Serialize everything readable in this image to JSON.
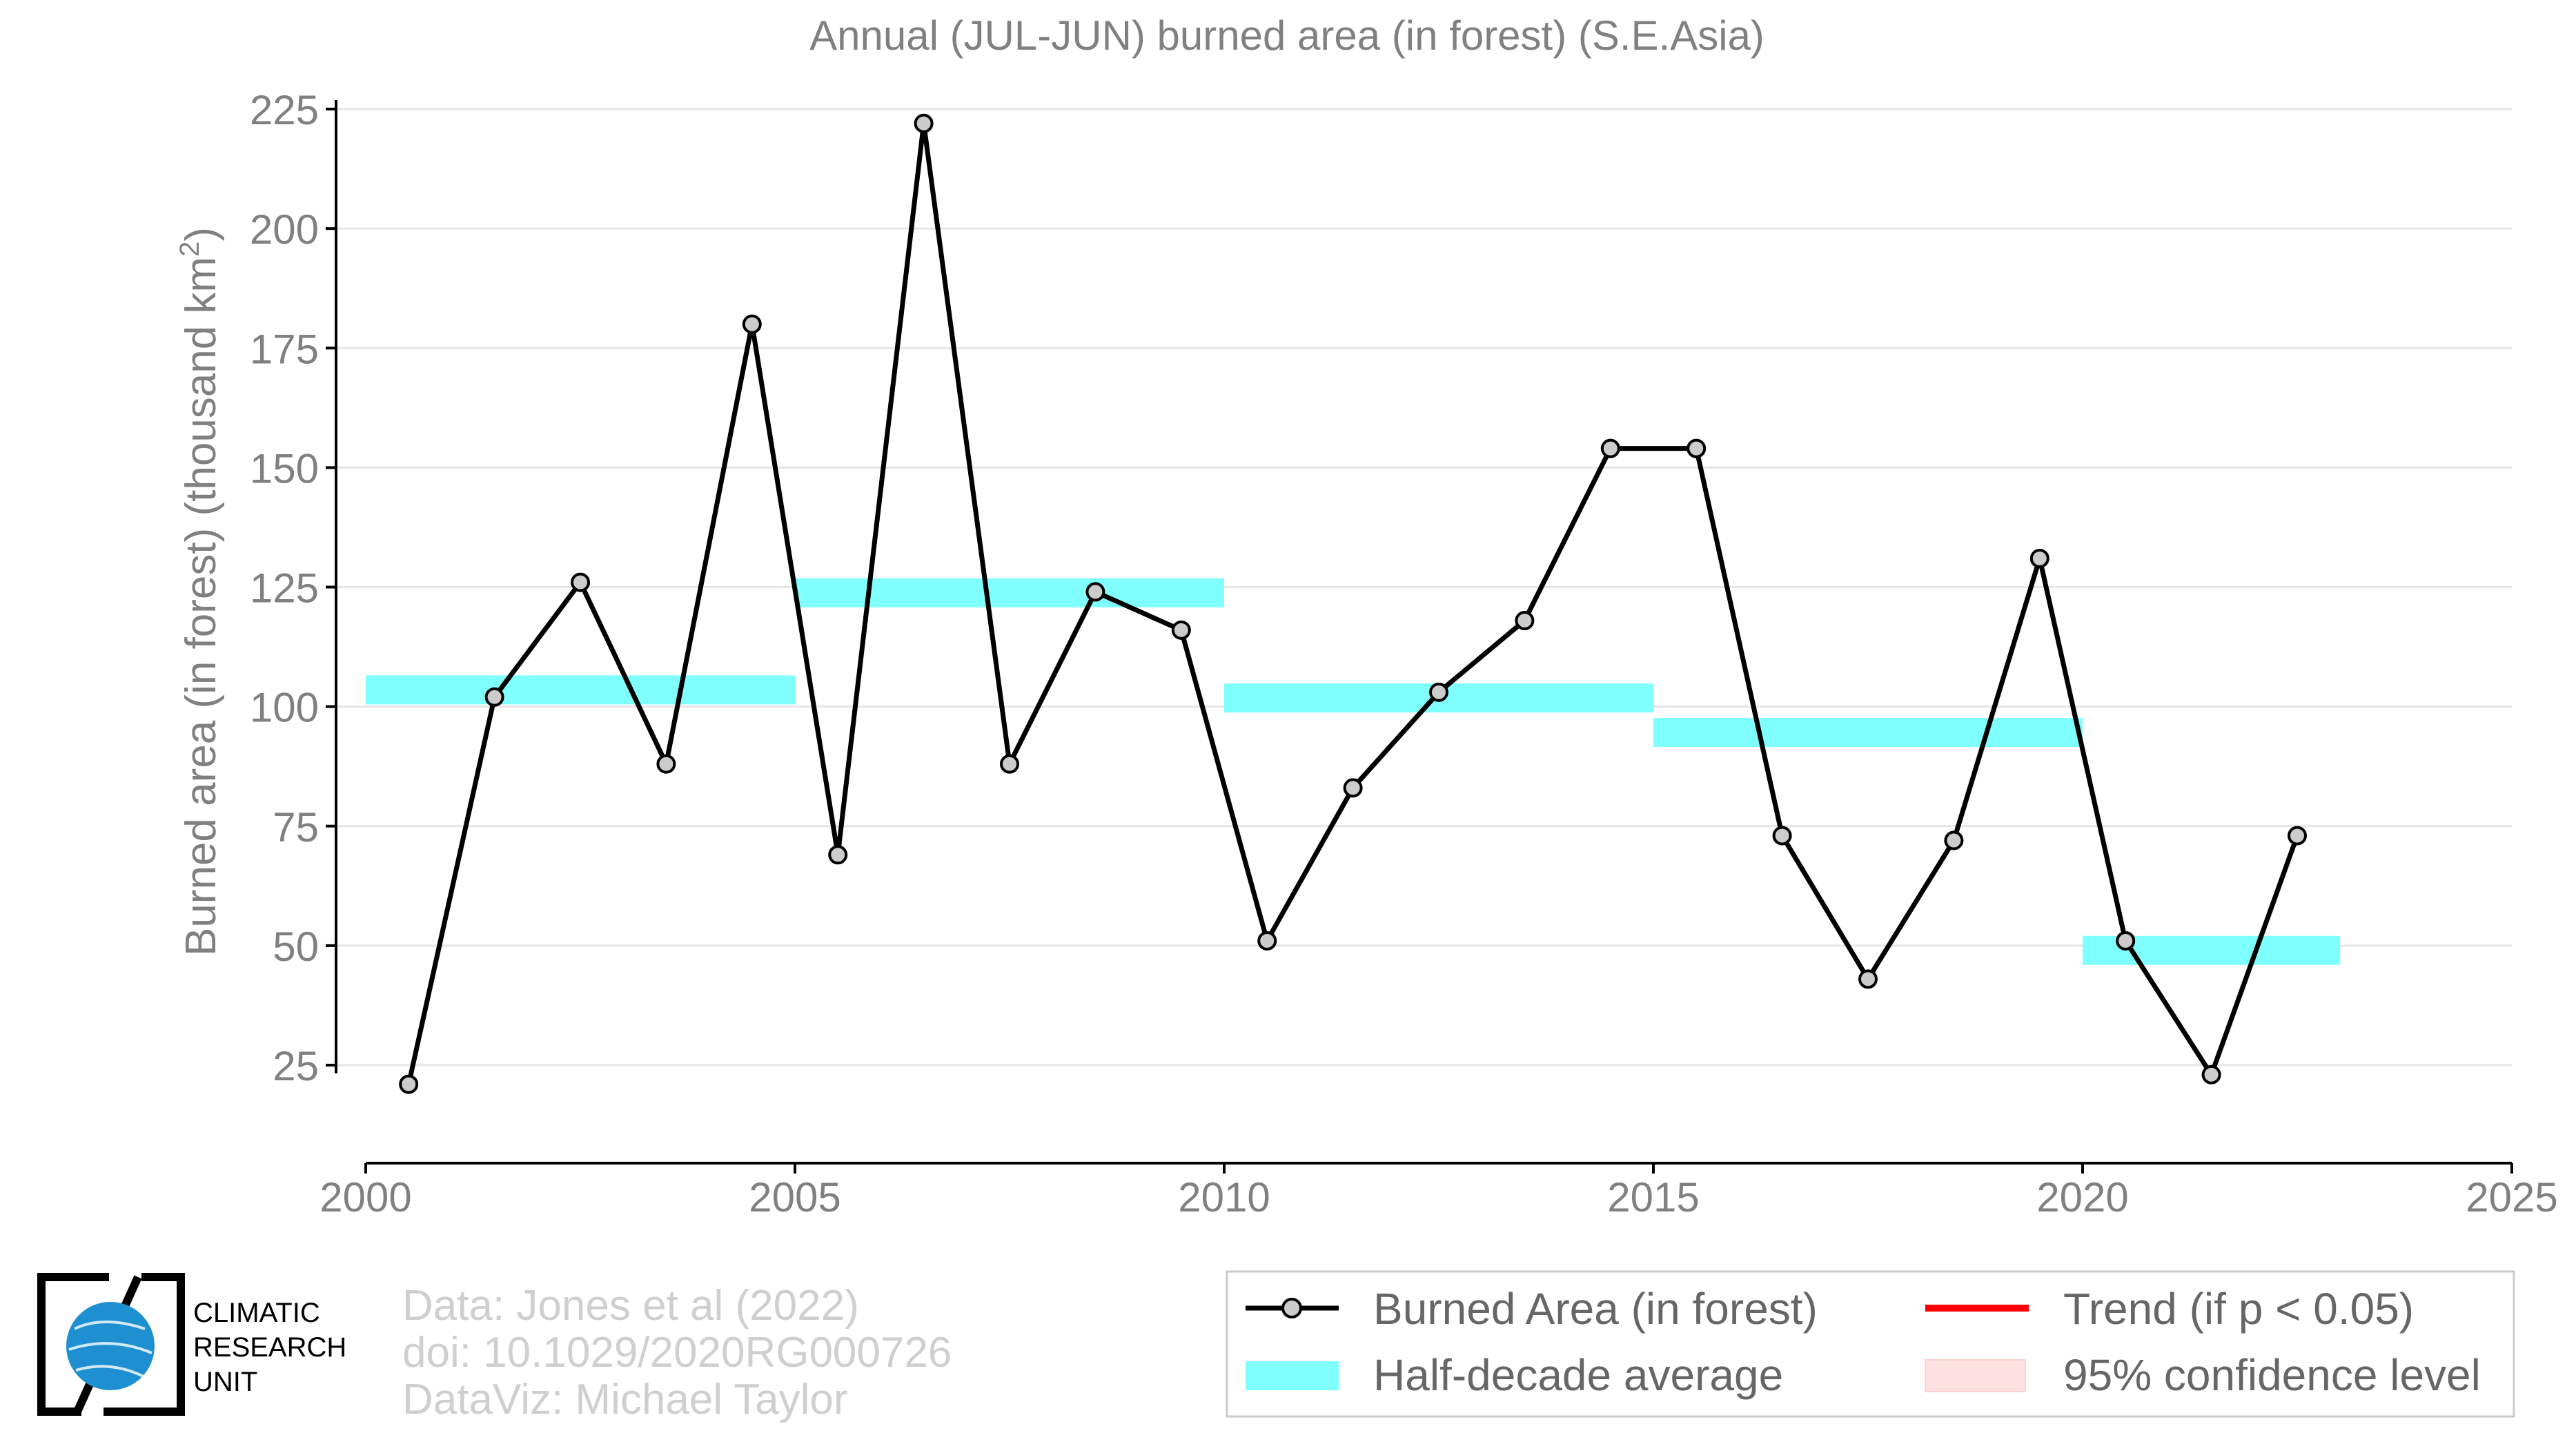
{
  "chart_data": {
    "type": "line",
    "title": "Annual (JUL-JUN) burned area (in forest) (S.E.Asia)",
    "ylabel_main": "Burned area (in forest) (thousand km",
    "ylabel_sup": "2",
    "ylabel_close": ")",
    "xlim": [
      2000,
      2025
    ],
    "ylim": [
      5,
      225
    ],
    "x_ticks": [
      2000,
      2005,
      2010,
      2015,
      2020,
      2025
    ],
    "y_ticks": [
      25,
      50,
      75,
      100,
      125,
      150,
      175,
      200,
      225
    ],
    "grid": "horizontal",
    "series": [
      {
        "name": "Burned Area (in forest)",
        "color": "#000000",
        "marker_fill": "#cccccc",
        "x": [
          2000.5,
          2001.5,
          2002.5,
          2003.5,
          2004.5,
          2005.5,
          2006.5,
          2007.5,
          2008.5,
          2009.5,
          2010.5,
          2011.5,
          2012.5,
          2013.5,
          2014.5,
          2015.5,
          2016.5,
          2017.5,
          2018.5,
          2019.5,
          2020.5,
          2021.5,
          2022.5
        ],
        "values": [
          21,
          102,
          126,
          88,
          180,
          69,
          222,
          88,
          124,
          116,
          51,
          83,
          103,
          118,
          154,
          154,
          73,
          43,
          72,
          131,
          51,
          23,
          73
        ]
      }
    ],
    "half_decade_average": {
      "name": "Half-decade average",
      "color": "#80ffff",
      "segments": [
        {
          "x0": 2000,
          "x1": 2005,
          "value": 103.5
        },
        {
          "x0": 2005,
          "x1": 2010,
          "value": 123.8
        },
        {
          "x0": 2010,
          "x1": 2015,
          "value": 101.8
        },
        {
          "x0": 2015,
          "x1": 2020,
          "value": 94.6
        },
        {
          "x0": 2020,
          "x1": 2023,
          "value": 49
        }
      ]
    },
    "legend": {
      "placement": "bottom-right",
      "items": [
        {
          "label": "Burned Area (in forest)",
          "kind": "line-marker",
          "color": "#000000"
        },
        {
          "label": "Trend (if p < 0.05)",
          "kind": "line",
          "color": "#ff0000"
        },
        {
          "label": "Half-decade average",
          "kind": "band",
          "color": "#80ffff"
        },
        {
          "label": "95% confidence level",
          "kind": "fill",
          "color": "#ffe0e0"
        }
      ]
    }
  },
  "credits": {
    "line1": "Data: Jones et al (2022)",
    "line2": "doi: 10.1029/2020RG000726",
    "line3": "DataViz: Michael Taylor"
  },
  "logo": {
    "line1": "CLIMATIC",
    "line2": "RESEARCH",
    "line3": "UNIT"
  }
}
